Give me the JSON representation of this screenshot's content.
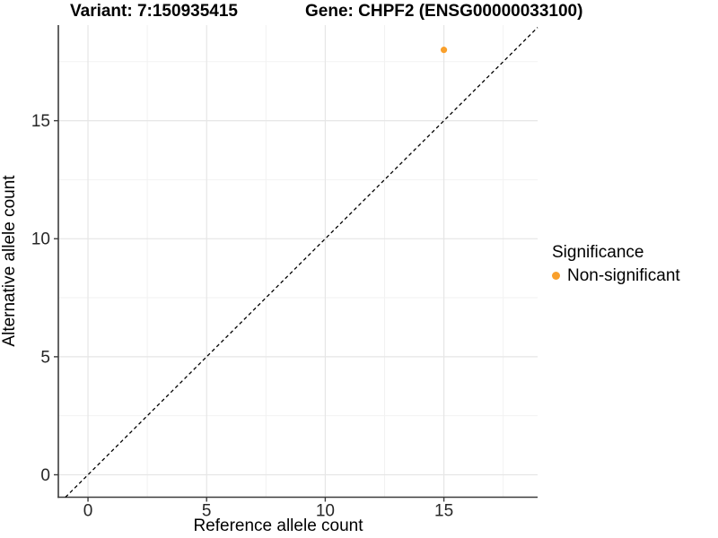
{
  "chart_data": {
    "type": "scatter",
    "titles": [
      "Variant: 7:150935415",
      "Gene: CHPF2 (ENSG00000033100)"
    ],
    "xlabel": "Reference allele count",
    "ylabel": "Alternative allele count",
    "xlim": [
      -1.25,
      18.95
    ],
    "ylim": [
      -0.95,
      19.05
    ],
    "xticks": [
      0,
      5,
      10,
      15
    ],
    "yticks": [
      0,
      5,
      10,
      15
    ],
    "x_minor": [
      2.5,
      7.5,
      12.5,
      17.5
    ],
    "y_minor": [
      2.5,
      7.5,
      12.5,
      17.5
    ],
    "grid": true,
    "points": [
      {
        "x": 15,
        "y": 18,
        "series": "Non-significant"
      }
    ],
    "reference_line": {
      "type": "identity",
      "slope": 1,
      "intercept": 0,
      "style": "dashed",
      "color": "#000000"
    },
    "legend": {
      "title": "Significance",
      "position": "right",
      "items": [
        {
          "label": "Non-significant",
          "color": "#F9A02C"
        }
      ]
    },
    "colors": {
      "point": "#F9A02C",
      "grid_major": "#E6E6E6",
      "grid_minor": "#F2F2F2",
      "axis": "#3C3C3C",
      "tick_text": "#262626"
    }
  }
}
